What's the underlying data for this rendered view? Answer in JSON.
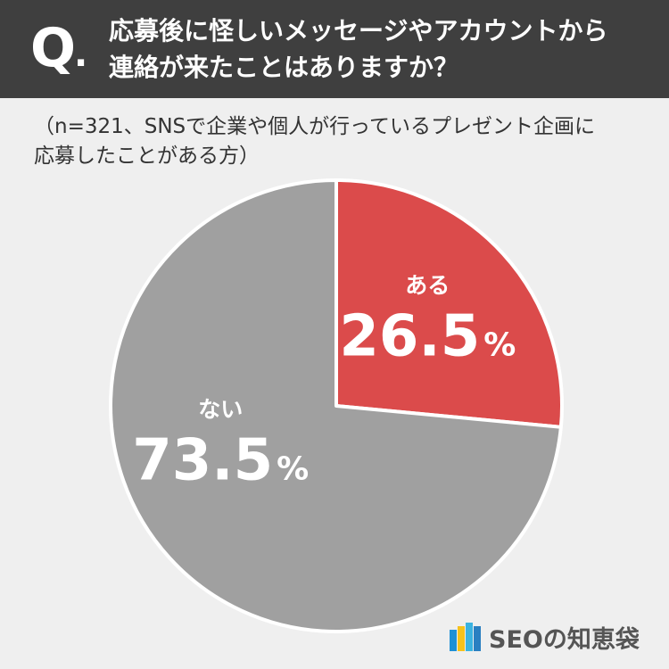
{
  "header": {
    "q_mark": "Q",
    "q_dot": ".",
    "question": "応募後に怪しいメッセージやアカウントから\n連絡が来たことはありますか？"
  },
  "note": "（n=321、SNSで企業や個人が行っているプレゼント企画に\n応募したことがある方）",
  "chart_data": {
    "type": "pie",
    "unit": "%",
    "slices": [
      {
        "label": "ある",
        "value": 26.5,
        "color": "#db4b4b"
      },
      {
        "label": "ない",
        "value": 73.5,
        "color": "#a0a0a0"
      }
    ]
  },
  "brand": {
    "text": "SEOの知恵袋",
    "logo_colors": [
      "#1e90d6",
      "#f6c21c",
      "#3bb3e0",
      "#2a7fc1"
    ]
  }
}
